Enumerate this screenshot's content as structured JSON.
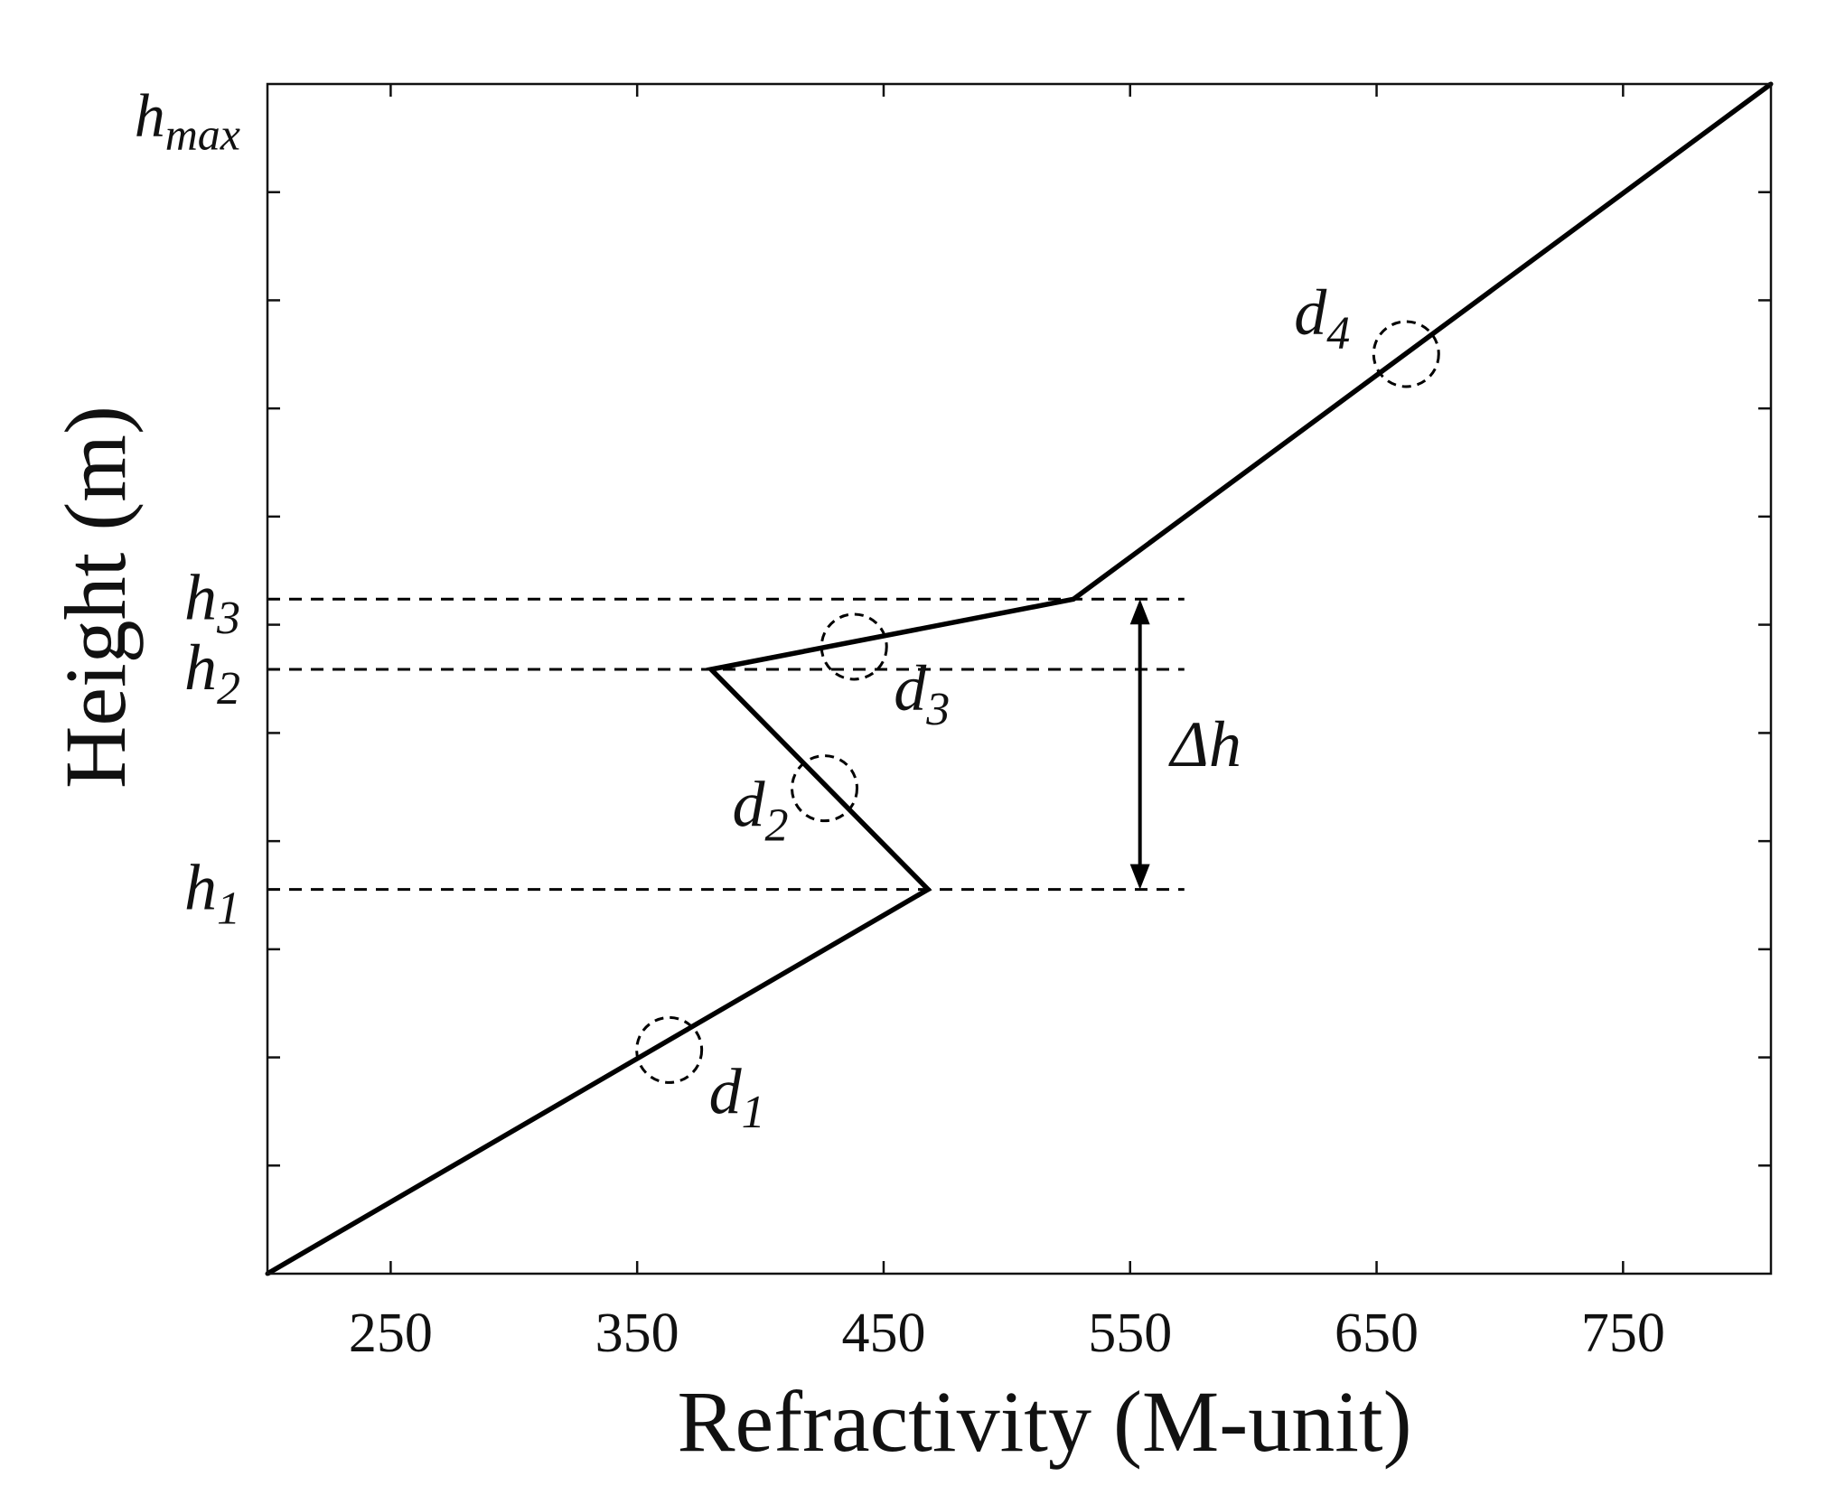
{
  "chart_data": {
    "type": "line",
    "xlabel": "Refractivity (M-unit)",
    "ylabel": "Height (m)",
    "xlim": [
      200,
      810
    ],
    "ylim": [
      0,
      1
    ],
    "x_ticks": [
      250,
      350,
      450,
      550,
      650,
      750
    ],
    "y_ticks": [
      0.0909,
      0.1818,
      0.2727,
      0.3636,
      0.4545,
      0.5455,
      0.6364,
      0.7273,
      0.8182,
      0.9091
    ],
    "series": [
      {
        "points": [
          {
            "x": 200,
            "y": 0.0
          },
          {
            "x": 468,
            "y": 0.323
          },
          {
            "x": 380,
            "y": 0.508
          },
          {
            "x": 527,
            "y": 0.567
          },
          {
            "x": 810,
            "y": 1.0
          }
        ]
      }
    ],
    "levels": [
      {
        "symbol": "h",
        "sub": "max",
        "y": 0.973
      },
      {
        "symbol": "h",
        "sub": "3",
        "y": 0.567
      },
      {
        "symbol": "h",
        "sub": "2",
        "y": 0.508
      },
      {
        "symbol": "h",
        "sub": "1",
        "y": 0.323
      }
    ],
    "segment_labels": [
      {
        "symbol": "d",
        "sub": "1",
        "x": 363,
        "y": 0.188
      },
      {
        "symbol": "d",
        "sub": "2",
        "x": 426,
        "y": 0.408
      },
      {
        "symbol": "d",
        "sub": "3",
        "x": 438,
        "y": 0.527
      },
      {
        "symbol": "d",
        "sub": "4",
        "x": 662,
        "y": 0.773
      }
    ],
    "delta_label": "Δh",
    "colors": {
      "line": "#000000",
      "axes": "#111111",
      "guides": "#000000"
    }
  }
}
